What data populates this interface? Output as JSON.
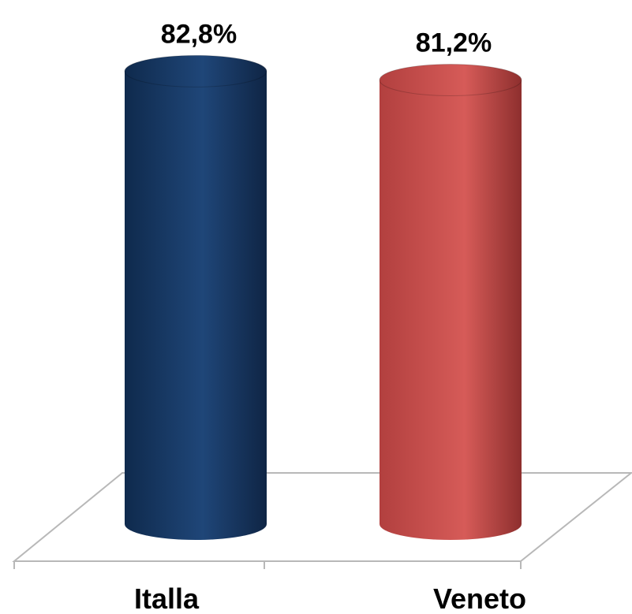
{
  "chart_data": {
    "type": "bar",
    "categories": [
      "Italla",
      "Veneto"
    ],
    "values": [
      82.8,
      81.2
    ],
    "value_labels": [
      "82,8%",
      "81,2%"
    ],
    "colors": [
      "#1f3f6e",
      "#c9504f"
    ],
    "title": "",
    "xlabel": "",
    "ylabel": "",
    "grid": false,
    "legend": "none"
  }
}
